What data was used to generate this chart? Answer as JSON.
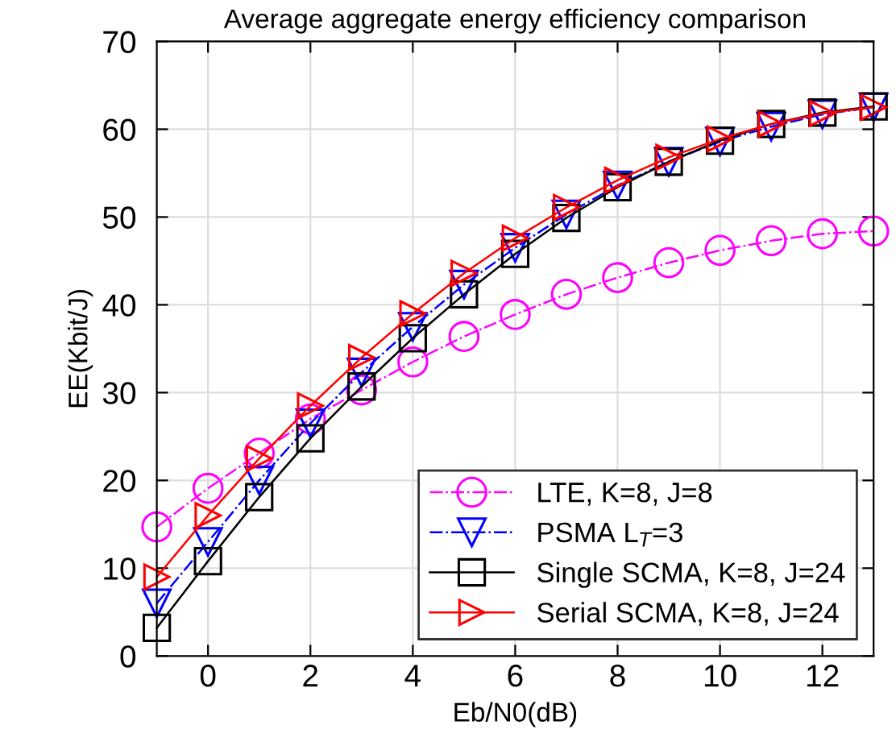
{
  "chart_data": {
    "type": "line",
    "title": "Average aggregate energy efficiency comparison",
    "xlabel": "Eb/N0(dB)",
    "ylabel": "EE(Kbit/J)",
    "x": [
      -1,
      0,
      1,
      2,
      3,
      4,
      5,
      6,
      7,
      8,
      9,
      10,
      11,
      12,
      13
    ],
    "series": [
      {
        "name": "LTE, K=8, J=8",
        "color": "#ff00ff",
        "marker": "circle",
        "line_style": "dashdot",
        "values": [
          14.7,
          19.1,
          23.1,
          27,
          30.3,
          33.5,
          36.4,
          38.9,
          41.2,
          43.1,
          44.8,
          46.2,
          47.3,
          48.1,
          48.4
        ]
      },
      {
        "name": "PSMA L$_{T}$=3",
        "color": "#0000ff",
        "marker": "triangle_down",
        "line_style": "dashdot",
        "values": [
          6,
          13,
          20,
          26.5,
          32.3,
          37.5,
          42.3,
          46.5,
          50.3,
          53.6,
          56.3,
          58.6,
          60.3,
          61.7,
          62.5
        ]
      },
      {
        "name": "Single SCMA, K=8, J=24",
        "color": "#000000",
        "marker": "square",
        "line_style": "solid",
        "values": [
          3.2,
          10.8,
          18.1,
          24.8,
          30.7,
          36.2,
          41.2,
          45.8,
          49.9,
          53.4,
          56.3,
          58.7,
          60.6,
          61.9,
          62.6
        ]
      },
      {
        "name": "Serial SCMA, K=8, J=24",
        "color": "#ff0000",
        "marker": "triangle_right",
        "line_style": "solid",
        "values": [
          9,
          16,
          22.5,
          28.5,
          34,
          39,
          43.6,
          47.6,
          51.1,
          54.2,
          56.8,
          58.9,
          60.6,
          61.8,
          62.5
        ]
      }
    ],
    "xlim": [
      -1,
      13
    ],
    "xticks": [
      0,
      2,
      4,
      6,
      8,
      10,
      12
    ],
    "ylim": [
      0,
      70
    ],
    "yticks": [
      0,
      10,
      20,
      30,
      40,
      50,
      60,
      70
    ],
    "grid": true,
    "legend": "bottom right"
  }
}
